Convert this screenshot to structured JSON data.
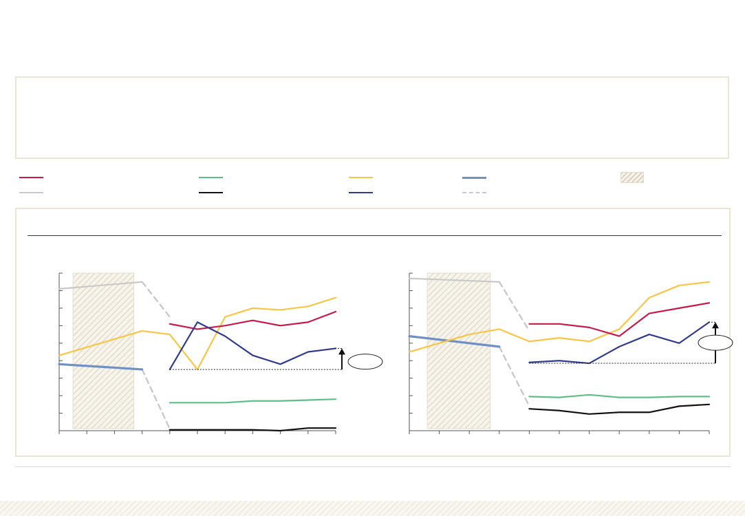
{
  "colors": {
    "series_red": "#c8184a",
    "series_green": "#5cbf8a",
    "series_yellow": "#fbc544",
    "series_steel_blue": "#6f8fc7",
    "series_navy": "#2e3a8c",
    "series_black": "#111111",
    "series_gray": "#c9c9c9",
    "series_gray_dashed": "#c9c9c9",
    "hatch": "#d9d2c0",
    "panel_border": "#e9e6d6"
  },
  "legend": {
    "items": [
      {
        "color": "#c8184a",
        "style": "solid"
      },
      {
        "color": "#5cbf8a",
        "style": "solid"
      },
      {
        "color": "#fbc544",
        "style": "solid"
      },
      {
        "color": "#6f8fc7",
        "style": "solid-thick"
      },
      {
        "color": "#d9d2c0",
        "style": "hatch"
      },
      {
        "color": "#c9c9c9",
        "style": "solid"
      },
      {
        "color": "#111111",
        "style": "solid"
      },
      {
        "color": "#2e3a8c",
        "style": "solid"
      },
      {
        "color": "#c9c9c9",
        "style": "dashed"
      }
    ]
  },
  "chart_data": [
    {
      "type": "line",
      "x": [
        0,
        1,
        2,
        3,
        4,
        5,
        6,
        7,
        8,
        9,
        10
      ],
      "ylim": [
        0,
        9
      ],
      "grid": false,
      "shaded_x_range": [
        0.5,
        2.7
      ],
      "series": [
        {
          "color": "#c9c9c9",
          "values": [
            8.1,
            null,
            null,
            8.5,
            null,
            null,
            null,
            null,
            null,
            null,
            null
          ]
        },
        {
          "color": "#c9c9c9",
          "style": "dashed",
          "values": [
            null,
            null,
            null,
            8.5,
            6.5,
            null,
            null,
            null,
            null,
            null,
            null
          ]
        },
        {
          "color": "#c9c9c9",
          "style": "dashed",
          "values": [
            null,
            null,
            null,
            3.5,
            0.1,
            null,
            null,
            null,
            null,
            null,
            null
          ]
        },
        {
          "color": "#6f8fc7",
          "style": "thick",
          "values": [
            3.8,
            null,
            null,
            3.5,
            null,
            null,
            null,
            null,
            null,
            null,
            null
          ]
        },
        {
          "color": "#fbc544",
          "values": [
            4.3,
            null,
            null,
            5.7,
            5.5,
            3.5,
            6.5,
            7.0,
            6.9,
            7.1,
            7.6
          ]
        },
        {
          "color": "#c8184a",
          "values": [
            null,
            null,
            null,
            null,
            6.1,
            5.8,
            6.0,
            6.3,
            6.0,
            6.2,
            6.8
          ]
        },
        {
          "color": "#2e3a8c",
          "values": [
            null,
            null,
            null,
            null,
            3.5,
            6.2,
            5.4,
            4.3,
            3.8,
            4.5,
            4.7
          ]
        },
        {
          "color": "#5cbf8a",
          "values": [
            null,
            null,
            null,
            null,
            1.6,
            1.6,
            1.6,
            1.7,
            1.7,
            1.75,
            1.8
          ]
        },
        {
          "color": "#111111",
          "values": [
            null,
            null,
            null,
            null,
            0.05,
            0.05,
            0.05,
            0.05,
            0.0,
            0.15,
            0.15
          ]
        }
      ],
      "reference_level": 3.5,
      "arrow_target": 4.7
    },
    {
      "type": "line",
      "x": [
        0,
        1,
        2,
        3,
        4,
        5,
        6,
        7,
        8,
        9,
        10
      ],
      "ylim": [
        0,
        9
      ],
      "grid": false,
      "shaded_x_range": [
        0.6,
        2.7
      ],
      "series": [
        {
          "color": "#c9c9c9",
          "values": [
            8.7,
            null,
            null,
            8.5,
            null,
            null,
            null,
            null,
            null,
            null,
            null
          ]
        },
        {
          "color": "#c9c9c9",
          "style": "dashed",
          "values": [
            null,
            null,
            null,
            8.5,
            5.7,
            null,
            null,
            null,
            null,
            null,
            null
          ]
        },
        {
          "color": "#c9c9c9",
          "style": "dashed",
          "values": [
            null,
            null,
            null,
            4.8,
            1.4,
            null,
            null,
            null,
            null,
            null,
            null
          ]
        },
        {
          "color": "#6f8fc7",
          "style": "thick",
          "values": [
            5.4,
            null,
            null,
            4.8,
            null,
            null,
            null,
            null,
            null,
            null,
            null
          ]
        },
        {
          "color": "#fbc544",
          "values": [
            4.5,
            null,
            5.5,
            5.8,
            5.1,
            5.3,
            5.1,
            5.8,
            7.6,
            8.3,
            8.5
          ]
        },
        {
          "color": "#c8184a",
          "values": [
            null,
            null,
            null,
            null,
            6.1,
            6.1,
            5.9,
            5.4,
            6.7,
            7.0,
            7.3
          ]
        },
        {
          "color": "#2e3a8c",
          "values": [
            null,
            null,
            null,
            null,
            3.9,
            4.0,
            3.85,
            4.8,
            5.5,
            5.0,
            6.2
          ]
        },
        {
          "color": "#5cbf8a",
          "values": [
            null,
            null,
            null,
            null,
            1.95,
            1.9,
            2.05,
            1.9,
            1.9,
            1.95,
            1.95
          ]
        },
        {
          "color": "#111111",
          "values": [
            null,
            null,
            null,
            null,
            1.25,
            1.15,
            0.95,
            1.05,
            1.05,
            1.4,
            1.5
          ]
        }
      ],
      "reference_level": 3.85,
      "arrow_target": 6.2
    }
  ]
}
